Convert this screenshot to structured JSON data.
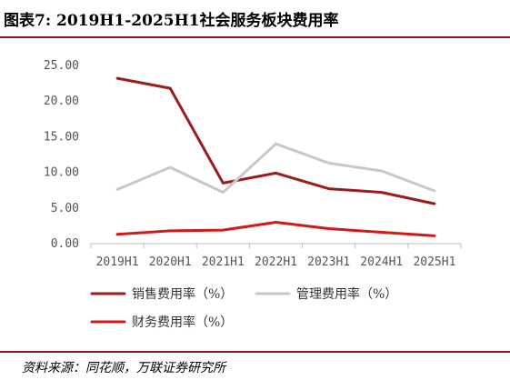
{
  "title": "图表7:  2019H1-2025H1社会服务板块费用率",
  "source": "资料来源：同花顺，万联证券研究所",
  "chart_data": {
    "type": "line",
    "title": "图表7:  2019H1-2025H1社会服务板块费用率",
    "xlabel": "",
    "ylabel": "",
    "categories": [
      "2019H1",
      "2020H1",
      "2021H1",
      "2022H1",
      "2023H1",
      "2024H1",
      "2025H1"
    ],
    "ylim": [
      0,
      25
    ],
    "yticks": [
      "0.00",
      "5.00",
      "10.00",
      "15.00",
      "20.00",
      "25.00"
    ],
    "grid": false,
    "legend_position": "bottom",
    "series": [
      {
        "name": "销售费用率（%）",
        "color": "#9b1c1c",
        "values": [
          23.2,
          21.8,
          8.5,
          9.9,
          7.7,
          7.2,
          5.6
        ]
      },
      {
        "name": "管理费用率（%）",
        "color": "#c8c8c8",
        "values": [
          7.6,
          10.7,
          7.2,
          14.0,
          11.3,
          10.2,
          7.4
        ]
      },
      {
        "name": "财务费用率（%）",
        "color": "#d11a1a",
        "values": [
          1.3,
          1.8,
          1.9,
          3.0,
          2.1,
          1.6,
          1.1
        ]
      }
    ]
  }
}
